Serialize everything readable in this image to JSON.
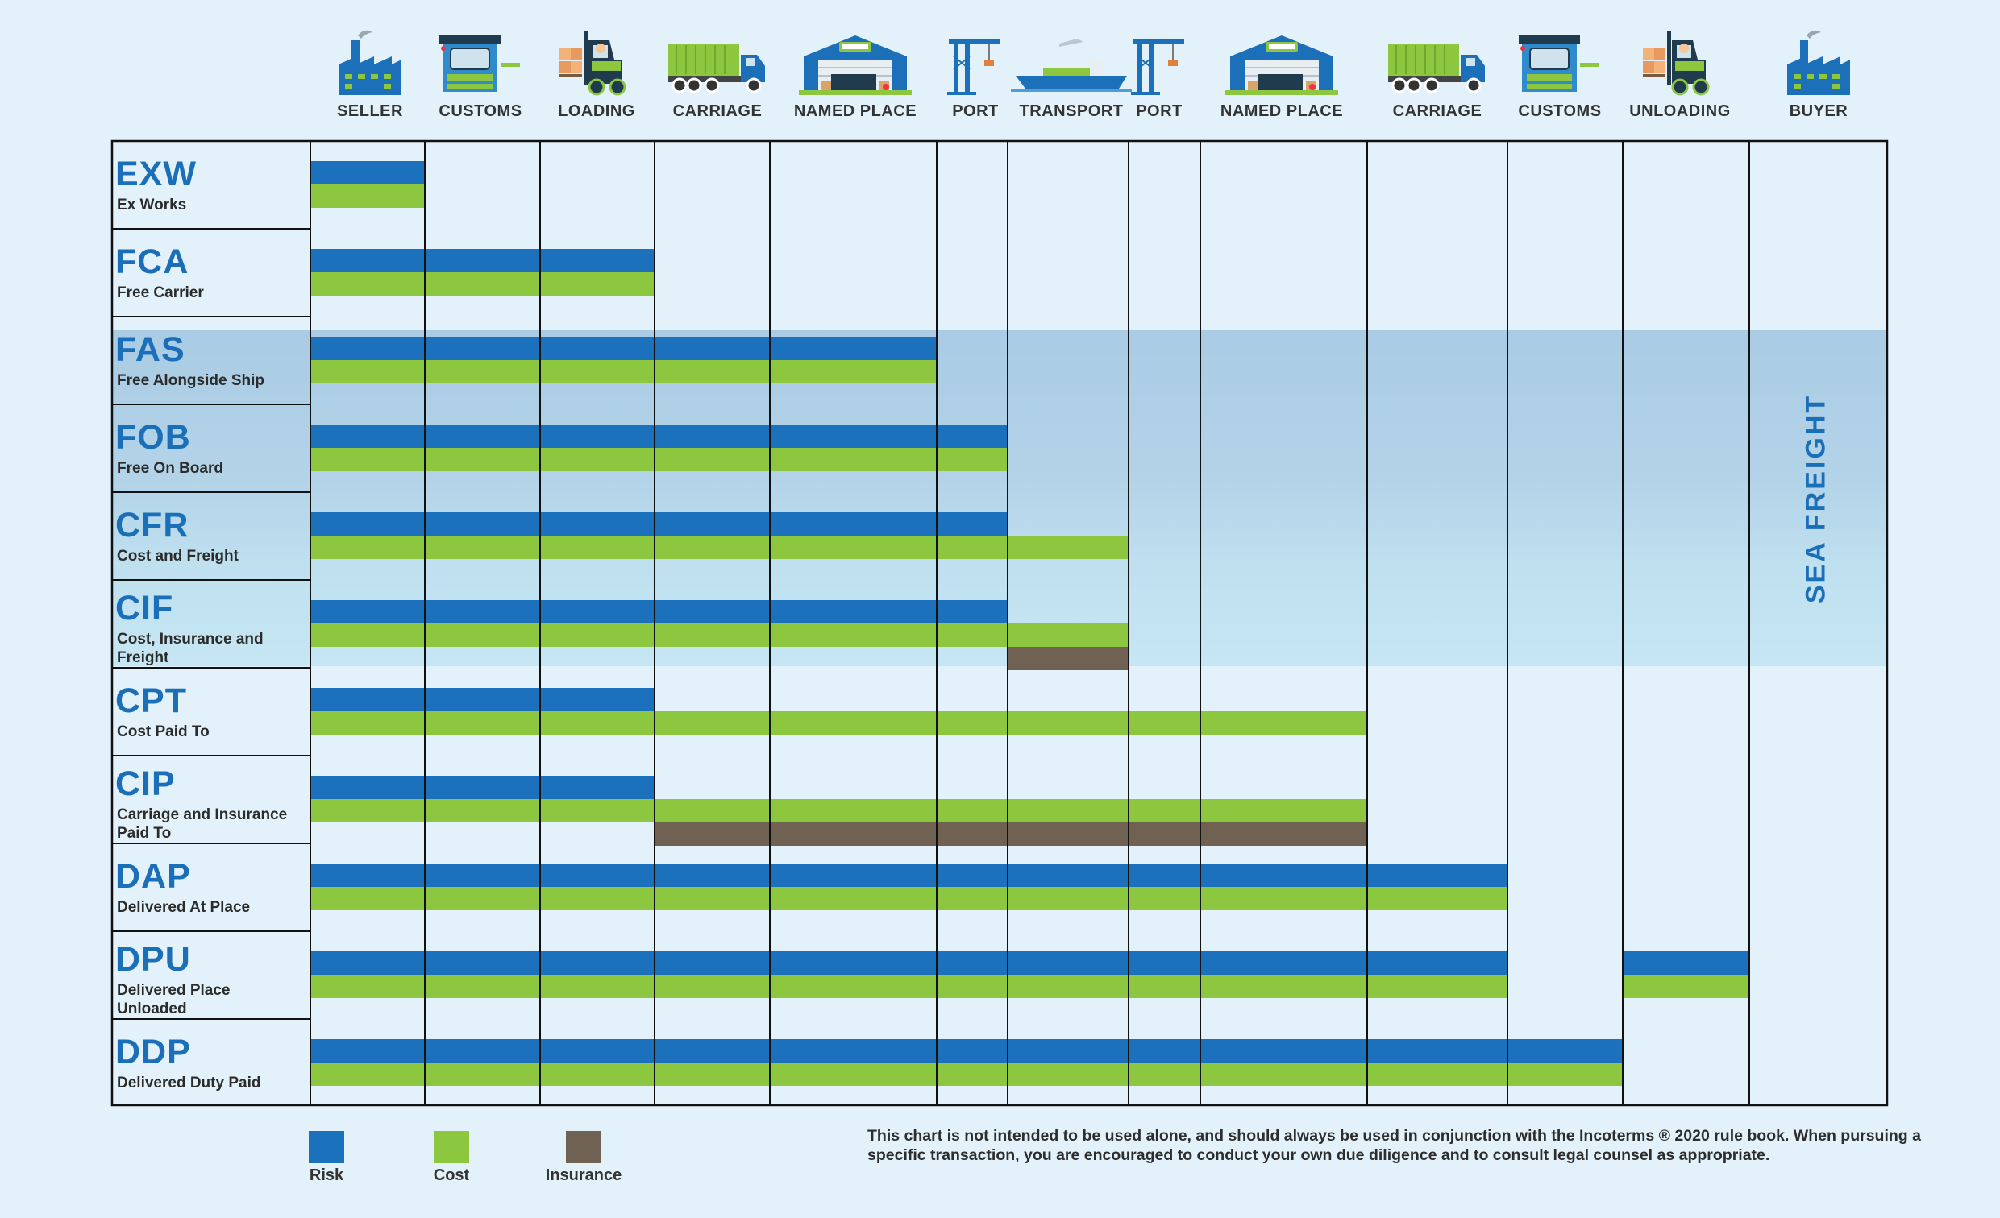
{
  "stages": [
    {
      "label": "SELLER",
      "icon": "factory-icon"
    },
    {
      "label": "CUSTOMS",
      "icon": "customs-booth-icon"
    },
    {
      "label": "LOADING",
      "icon": "forklift-icon"
    },
    {
      "label": "CARRIAGE",
      "icon": "truck-icon"
    },
    {
      "label": "NAMED PLACE",
      "icon": "cargo-warehouse-icon"
    },
    {
      "label": "PORT",
      "icon": "port-crane-icon"
    },
    {
      "label": "TRANSPORT",
      "icon": "cargo-ship-icon"
    },
    {
      "label": "PORT",
      "icon": "port-crane-icon"
    },
    {
      "label": "NAMED PLACE",
      "icon": "cargo-warehouse-icon"
    },
    {
      "label": "CARRIAGE",
      "icon": "truck-icon"
    },
    {
      "label": "CUSTOMS",
      "icon": "customs-booth-icon"
    },
    {
      "label": "UNLOADING",
      "icon": "forklift-icon"
    },
    {
      "label": "BUYER",
      "icon": "factory-icon"
    }
  ],
  "terms": [
    {
      "code": "EXW",
      "name": "Ex Works",
      "risk": [
        1,
        1
      ],
      "cost": [
        1,
        1
      ],
      "insurance": null
    },
    {
      "code": "FCA",
      "name": "Free Carrier",
      "risk": [
        1,
        3
      ],
      "cost": [
        1,
        3
      ],
      "insurance": null
    },
    {
      "code": "FAS",
      "name": "Free Alongside Ship",
      "risk": [
        1,
        5
      ],
      "cost": [
        1,
        5
      ],
      "insurance": null
    },
    {
      "code": "FOB",
      "name": "Free On Board",
      "risk": [
        1,
        6
      ],
      "cost": [
        1,
        6
      ],
      "insurance": null
    },
    {
      "code": "CFR",
      "name": "Cost and Freight",
      "risk": [
        1,
        6
      ],
      "cost": [
        1,
        7
      ],
      "insurance": null
    },
    {
      "code": "CIF",
      "name": "Cost, Insurance and Freight",
      "risk": [
        1,
        6
      ],
      "cost": [
        1,
        7
      ],
      "insurance": [
        7,
        7
      ]
    },
    {
      "code": "CPT",
      "name": "Cost Paid To",
      "risk": [
        1,
        3
      ],
      "cost": [
        1,
        9
      ],
      "insurance": null
    },
    {
      "code": "CIP",
      "name": "Carriage and Insurance Paid To",
      "risk": [
        1,
        3
      ],
      "cost": [
        1,
        9
      ],
      "insurance": [
        4,
        9
      ]
    },
    {
      "code": "DAP",
      "name": "Delivered At Place",
      "risk": [
        1,
        10
      ],
      "cost": [
        1,
        10
      ],
      "insurance": null
    },
    {
      "code": "DPU",
      "name": "Delivered Place Unloaded",
      "risk": [
        1,
        10,
        12,
        12
      ],
      "cost": [
        1,
        10,
        12,
        12
      ],
      "insurance": null
    },
    {
      "code": "DDP",
      "name": "Delivered Duty Paid",
      "risk": [
        1,
        11
      ],
      "cost": [
        1,
        11
      ],
      "insurance": null
    }
  ],
  "sea_freight_terms": [
    "FAS",
    "FOB",
    "CFR",
    "CIF"
  ],
  "sea_freight_label": "SEA FREIGHT",
  "legend": [
    {
      "key": "risk",
      "label": "Risk",
      "color": "#1b71bb"
    },
    {
      "key": "cost",
      "label": "Cost",
      "color": "#8dc63f"
    },
    {
      "key": "insurance",
      "label": "Insurance",
      "color": "#6f6253"
    }
  ],
  "colors": {
    "risk": "#1b71bb",
    "cost": "#8dc63f",
    "insurance": "#6f6253",
    "accent_blue": "#1b6fb8",
    "background": "#e3f2fa"
  },
  "disclaimer": "This chart is not intended to be used alone, and should always be used in conjunction with the Incoterms ® 2020 rule book. When pursuing a specific transaction, you are encouraged to conduct your own due diligence and to consult legal counsel as appropriate."
}
